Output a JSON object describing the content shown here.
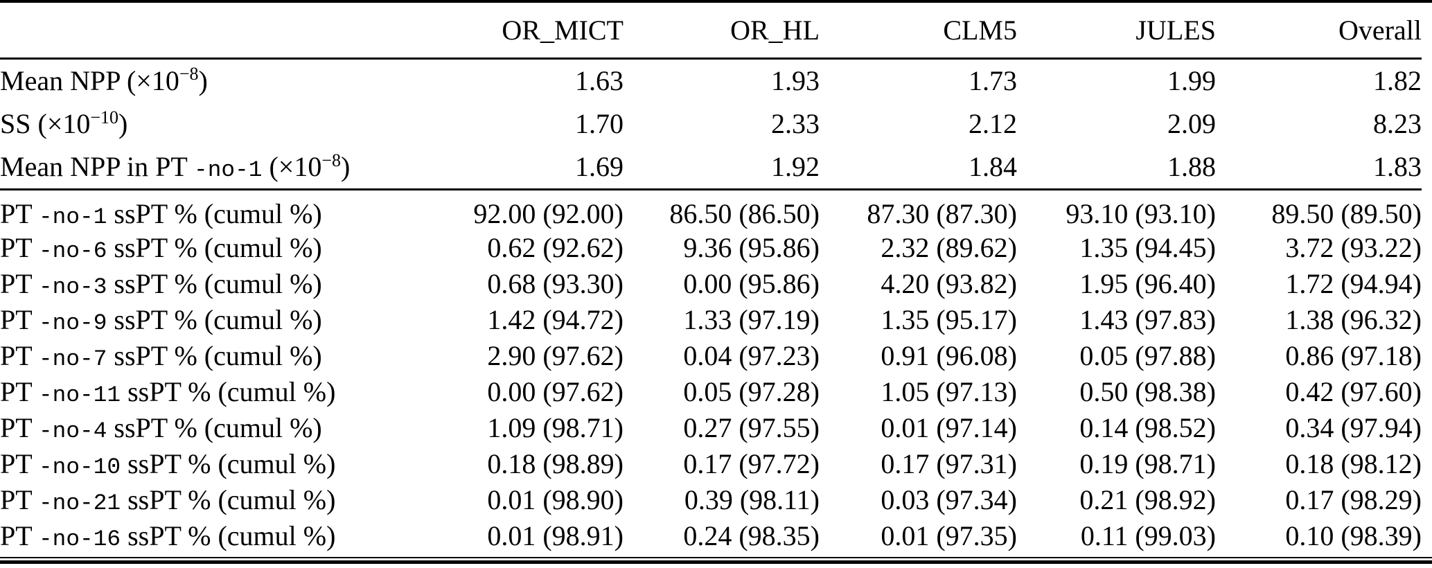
{
  "table": {
    "header": {
      "row_label": "",
      "columns": [
        "OR_MICT",
        "OR_HL",
        "CLM5",
        "JULES",
        "Overall"
      ]
    },
    "sections": [
      {
        "name": "summary-statistics",
        "rows": [
          {
            "label_parts": [
              {
                "style": "normal",
                "text": "Mean NPP (×10"
              },
              {
                "style": "sup",
                "text": "−8"
              },
              {
                "style": "normal",
                "text": ")"
              }
            ],
            "values": [
              "1.63",
              "1.93",
              "1.73",
              "1.99",
              "1.82"
            ]
          },
          {
            "label_parts": [
              {
                "style": "normal",
                "text": "SS (×10"
              },
              {
                "style": "sup",
                "text": "−10"
              },
              {
                "style": "normal",
                "text": ")"
              }
            ],
            "values": [
              "1.70",
              "2.33",
              "2.12",
              "2.09",
              "8.23"
            ]
          },
          {
            "label_parts": [
              {
                "style": "normal",
                "text": "Mean NPP in PT "
              },
              {
                "style": "mono",
                "text": "-no-1"
              },
              {
                "style": "normal",
                "text": " (×10"
              },
              {
                "style": "sup",
                "text": "−8"
              },
              {
                "style": "normal",
                "text": ")"
              }
            ],
            "values": [
              "1.69",
              "1.92",
              "1.84",
              "1.88",
              "1.83"
            ]
          }
        ]
      },
      {
        "name": "pt-sspt-percentages",
        "rows": [
          {
            "label_parts": [
              {
                "style": "normal",
                "text": "PT "
              },
              {
                "style": "mono",
                "text": "-no-1"
              },
              {
                "style": "normal",
                "text": " ssPT % (cumul  %)"
              }
            ],
            "values": [
              "92.00 (92.00)",
              "86.50 (86.50)",
              "87.30 (87.30)",
              "93.10 (93.10)",
              "89.50 (89.50)"
            ]
          },
          {
            "label_parts": [
              {
                "style": "normal",
                "text": "PT "
              },
              {
                "style": "mono",
                "text": "-no-6"
              },
              {
                "style": "normal",
                "text": " ssPT % (cumul  %)"
              }
            ],
            "values": [
              "0.62 (92.62)",
              "9.36 (95.86)",
              "2.32 (89.62)",
              "1.35 (94.45)",
              "3.72 (93.22)"
            ]
          },
          {
            "label_parts": [
              {
                "style": "normal",
                "text": "PT "
              },
              {
                "style": "mono",
                "text": "-no-3"
              },
              {
                "style": "normal",
                "text": " ssPT % (cumul  %)"
              }
            ],
            "values": [
              "0.68 (93.30)",
              "0.00 (95.86)",
              "4.20 (93.82)",
              "1.95 (96.40)",
              "1.72 (94.94)"
            ]
          },
          {
            "label_parts": [
              {
                "style": "normal",
                "text": "PT "
              },
              {
                "style": "mono",
                "text": "-no-9"
              },
              {
                "style": "normal",
                "text": " ssPT % (cumul  %)"
              }
            ],
            "values": [
              "1.42 (94.72)",
              "1.33 (97.19)",
              "1.35 (95.17)",
              "1.43 (97.83)",
              "1.38 (96.32)"
            ]
          },
          {
            "label_parts": [
              {
                "style": "normal",
                "text": "PT "
              },
              {
                "style": "mono",
                "text": "-no-7"
              },
              {
                "style": "normal",
                "text": " ssPT % (cumul  %)"
              }
            ],
            "values": [
              "2.90 (97.62)",
              "0.04 (97.23)",
              "0.91 (96.08)",
              "0.05 (97.88)",
              "0.86 (97.18)"
            ]
          },
          {
            "label_parts": [
              {
                "style": "normal",
                "text": "PT "
              },
              {
                "style": "mono",
                "text": "-no-11"
              },
              {
                "style": "normal",
                "text": " ssPT % (cumul  %)"
              }
            ],
            "values": [
              "0.00 (97.62)",
              "0.05 (97.28)",
              "1.05 (97.13)",
              "0.50 (98.38)",
              "0.42 (97.60)"
            ]
          },
          {
            "label_parts": [
              {
                "style": "normal",
                "text": "PT "
              },
              {
                "style": "mono",
                "text": "-no-4"
              },
              {
                "style": "normal",
                "text": " ssPT % (cumul  %)"
              }
            ],
            "values": [
              "1.09 (98.71)",
              "0.27 (97.55)",
              "0.01 (97.14)",
              "0.14 (98.52)",
              "0.34 (97.94)"
            ]
          },
          {
            "label_parts": [
              {
                "style": "normal",
                "text": "PT "
              },
              {
                "style": "mono",
                "text": "-no-10"
              },
              {
                "style": "normal",
                "text": " ssPT % (cumul  %)"
              }
            ],
            "values": [
              "0.18 (98.89)",
              "0.17 (97.72)",
              "0.17 (97.31)",
              "0.19 (98.71)",
              "0.18 (98.12)"
            ]
          },
          {
            "label_parts": [
              {
                "style": "normal",
                "text": "PT "
              },
              {
                "style": "mono",
                "text": "-no-21"
              },
              {
                "style": "normal",
                "text": " ssPT % (cumul  %)"
              }
            ],
            "values": [
              "0.01 (98.90)",
              "0.39 (98.11)",
              "0.03 (97.34)",
              "0.21 (98.92)",
              "0.17 (98.29)"
            ]
          },
          {
            "label_parts": [
              {
                "style": "normal",
                "text": "PT "
              },
              {
                "style": "mono",
                "text": "-no-16"
              },
              {
                "style": "normal",
                "text": " ssPT % (cumul  %)"
              }
            ],
            "values": [
              "0.01 (98.91)",
              "0.24 (98.35)",
              "0.01 (97.35)",
              "0.11 (99.03)",
              "0.10 (98.39)"
            ]
          }
        ]
      }
    ]
  }
}
